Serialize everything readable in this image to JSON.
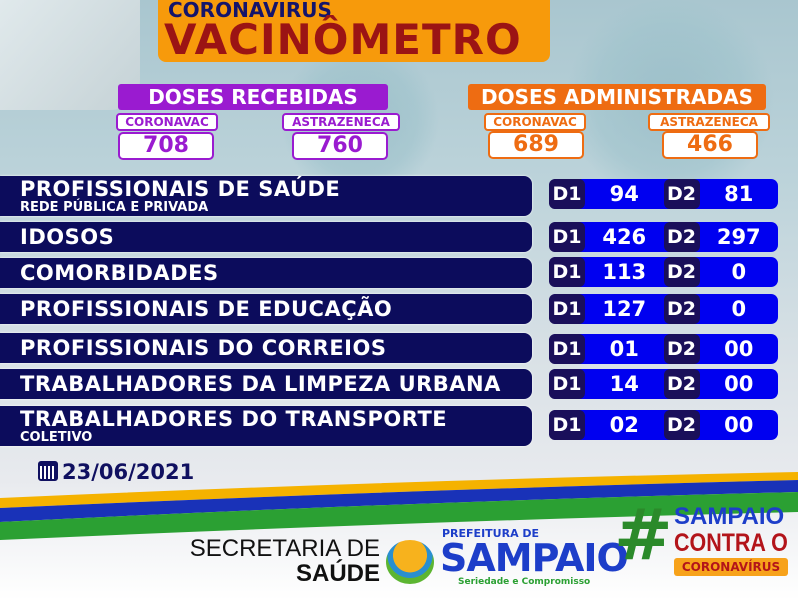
{
  "header": {
    "kicker": "CORONAVIRUS",
    "title": "VACINÔMETRO"
  },
  "received": {
    "title": "DOSES RECEBIDAS",
    "items": [
      {
        "label": "CORONAVAC",
        "value": "708"
      },
      {
        "label": "ASTRAZENECA",
        "value": "760"
      }
    ]
  },
  "administered": {
    "title": "DOSES ADMINISTRADAS",
    "items": [
      {
        "label": "CORONAVAC",
        "value": "689"
      },
      {
        "label": "ASTRAZENECA",
        "value": "466"
      }
    ]
  },
  "groups": [
    {
      "name": "PROFISSIONAIS DE SAÚDE",
      "sub": "REDE PÚBLICA E PRIVADA",
      "d1": "94",
      "d2": "81"
    },
    {
      "name": "IDOSOS",
      "sub": "",
      "d1": "426",
      "d2": "297"
    },
    {
      "name": "COMORBIDADES",
      "sub": "",
      "d1": "113",
      "d2": "0"
    },
    {
      "name": "PROFISSIONAIS DE EDUCAÇÃO",
      "sub": "",
      "d1": "127",
      "d2": "0"
    },
    {
      "name": "PROFISSIONAIS DO CORREIOS",
      "sub": "",
      "d1": "01",
      "d2": "00"
    },
    {
      "name": "TRABALHADORES DA LIMPEZA URBANA",
      "sub": "",
      "d1": "14",
      "d2": "00"
    },
    {
      "name": "TRABALHADORES DO TRANSPORTE",
      "sub": "COLETIVO",
      "d1": "02",
      "d2": "00"
    }
  ],
  "dose_labels": {
    "d1": "D1",
    "d2": "D2"
  },
  "date": "23/06/2021",
  "footer": {
    "secretaria_line1": "SECRETARIA DE",
    "secretaria_line2": "SAÚDE",
    "prefeitura": "PREFEITURA DE",
    "city": "SAMPAIO",
    "slogan": "Seriedade e Compromisso",
    "hashtag": "#",
    "campaign_line1": "SAMPAIO",
    "campaign_line2": "CONTRA O",
    "campaign_line3": "CORONAVÍRUS"
  },
  "colors": {
    "purple": "#9a1bd0",
    "orange": "#ee6c12",
    "navy": "#0c0c5c",
    "blue": "#0000f0",
    "title_red": "#9b1414",
    "title_bg": "#f79a0b"
  }
}
